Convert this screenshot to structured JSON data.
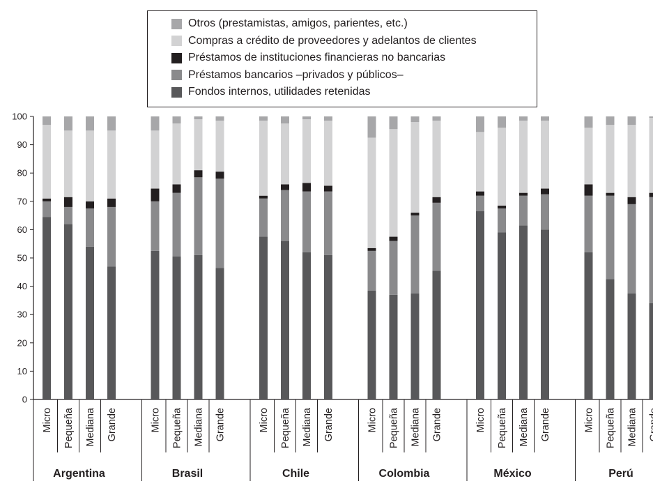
{
  "chart_data": {
    "type": "bar",
    "stacked": true,
    "title": "",
    "xlabel": "",
    "ylabel": "",
    "ylim": [
      0,
      100
    ],
    "yticks": [
      0,
      10,
      20,
      30,
      40,
      50,
      60,
      70,
      80,
      90,
      100
    ],
    "grid": false,
    "legend_position": "top-center",
    "groups": [
      "Argentina",
      "Brasil",
      "Chile",
      "Colombia",
      "México",
      "Perú"
    ],
    "categories": [
      "Micro",
      "Pequeña",
      "Mediana",
      "Grande"
    ],
    "series": [
      {
        "name": "Fondos internos, utilidades retenidas",
        "color": "#58585a",
        "values": [
          [
            64.5,
            62,
            54,
            47
          ],
          [
            52.5,
            50.5,
            51,
            46.5
          ],
          [
            57.5,
            56,
            52,
            51
          ],
          [
            38.5,
            37,
            37.5,
            45.5
          ],
          [
            66.5,
            59,
            61.5,
            60
          ],
          [
            52,
            42.5,
            37.5,
            34
          ]
        ]
      },
      {
        "name": "Préstamos bancarios –privados y públicos–",
        "color": "#8a8a8c",
        "values": [
          [
            5.5,
            6,
            13.5,
            21
          ],
          [
            17.5,
            22.5,
            27.5,
            31.5
          ],
          [
            13.5,
            18,
            21.5,
            22.5
          ],
          [
            14,
            19,
            27.5,
            24
          ],
          [
            5.5,
            8.5,
            10.5,
            12.5
          ],
          [
            20,
            29.5,
            31.5,
            37.5
          ]
        ]
      },
      {
        "name": "Préstamos de instituciones financieras no bancarias",
        "color": "#231f20",
        "values": [
          [
            1,
            3.5,
            2.5,
            3
          ],
          [
            4.5,
            3,
            2.5,
            2.5
          ],
          [
            1,
            2,
            3,
            2
          ],
          [
            1,
            1.5,
            1,
            2
          ],
          [
            1.5,
            1,
            1,
            2
          ],
          [
            4,
            1,
            2.5,
            1.5
          ]
        ]
      },
      {
        "name": "Compras a crédito de proveedores y adelantos de clientes",
        "color": "#d2d2d3",
        "values": [
          [
            26,
            23.5,
            25,
            24
          ],
          [
            20.5,
            21.5,
            18,
            18
          ],
          [
            26.5,
            21.5,
            22.5,
            23
          ],
          [
            39,
            38,
            32,
            27
          ],
          [
            21,
            27.5,
            25.5,
            24
          ],
          [
            20,
            24,
            25.5,
            26.5
          ]
        ]
      },
      {
        "name": "Otros (prestamistas, amigos, parientes, etc.)",
        "color": "#a7a7a9",
        "values": [
          [
            3,
            5,
            5,
            5
          ],
          [
            5,
            2.5,
            1,
            1.5
          ],
          [
            1.5,
            2.5,
            1,
            1.5
          ],
          [
            7.5,
            4.5,
            2,
            1.5
          ],
          [
            5.5,
            4,
            1.5,
            1.5
          ],
          [
            4,
            3,
            3,
            0.5
          ]
        ]
      }
    ],
    "legend_order": [
      4,
      3,
      2,
      1,
      0
    ]
  }
}
